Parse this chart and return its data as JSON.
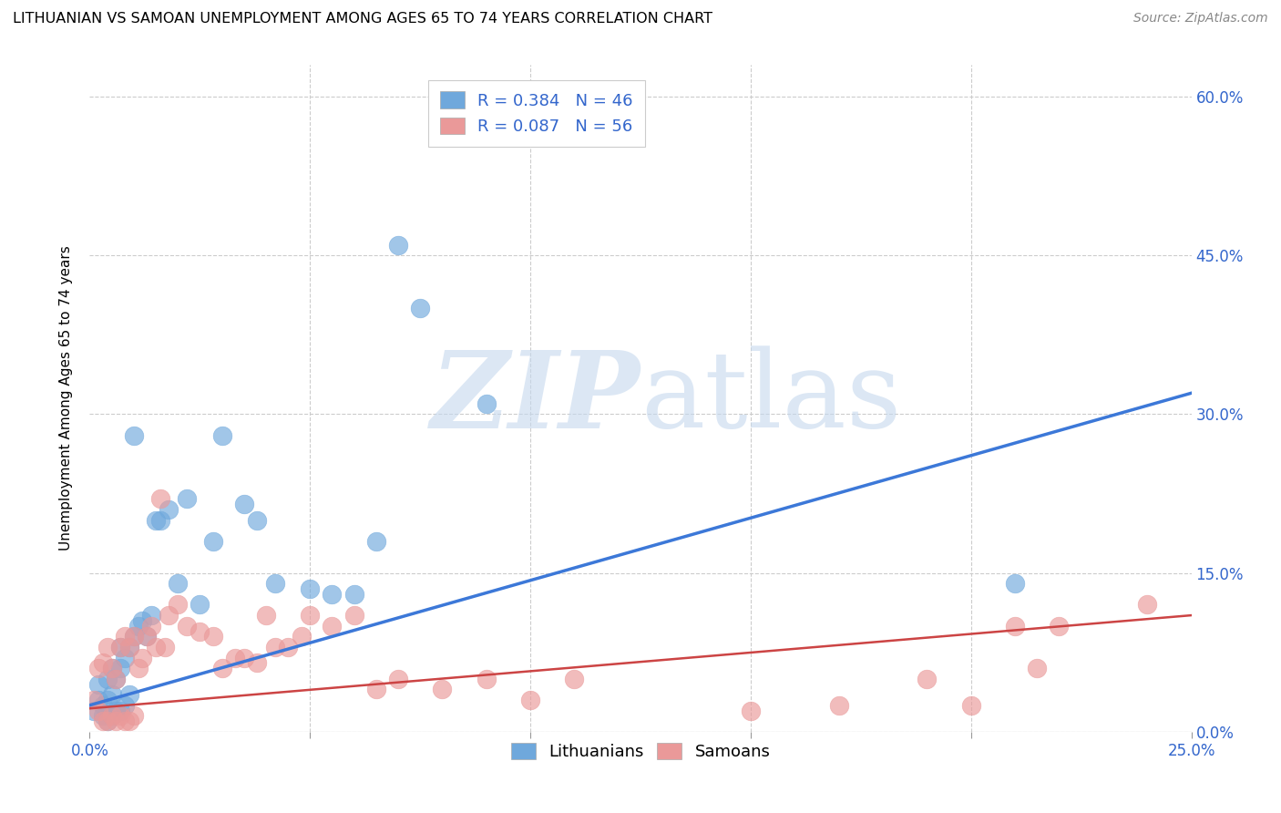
{
  "title": "LITHUANIAN VS SAMOAN UNEMPLOYMENT AMONG AGES 65 TO 74 YEARS CORRELATION CHART",
  "source": "Source: ZipAtlas.com",
  "ylabel": "Unemployment Among Ages 65 to 74 years",
  "xlim": [
    0.0,
    0.25
  ],
  "ylim": [
    0.0,
    0.63
  ],
  "lithuanian_color": "#6fa8dc",
  "samoan_color": "#ea9999",
  "lithuanian_line_color": "#3c78d8",
  "samoan_line_color": "#cc4444",
  "R_lithuanian": 0.384,
  "N_lithuanian": 46,
  "R_samoan": 0.087,
  "N_samoan": 56,
  "background_color": "#ffffff",
  "title_fontsize": 11.5,
  "source_fontsize": 10,
  "legend_fontsize": 13,
  "axis_label_fontsize": 11,
  "tick_fontsize": 12,
  "lit_x": [
    0.001,
    0.002,
    0.002,
    0.003,
    0.003,
    0.004,
    0.004,
    0.004,
    0.005,
    0.005,
    0.005,
    0.006,
    0.006,
    0.007,
    0.007,
    0.007,
    0.008,
    0.008,
    0.009,
    0.009,
    0.01,
    0.01,
    0.011,
    0.012,
    0.013,
    0.014,
    0.015,
    0.016,
    0.018,
    0.02,
    0.022,
    0.025,
    0.028,
    0.03,
    0.035,
    0.038,
    0.042,
    0.05,
    0.055,
    0.06,
    0.065,
    0.07,
    0.075,
    0.09,
    0.12,
    0.21
  ],
  "lit_y": [
    0.02,
    0.03,
    0.045,
    0.015,
    0.025,
    0.01,
    0.03,
    0.05,
    0.015,
    0.035,
    0.06,
    0.02,
    0.05,
    0.02,
    0.06,
    0.08,
    0.025,
    0.07,
    0.035,
    0.08,
    0.09,
    0.28,
    0.1,
    0.105,
    0.09,
    0.11,
    0.2,
    0.2,
    0.21,
    0.14,
    0.22,
    0.12,
    0.18,
    0.28,
    0.215,
    0.2,
    0.14,
    0.135,
    0.13,
    0.13,
    0.18,
    0.46,
    0.4,
    0.31,
    0.57,
    0.14
  ],
  "sam_x": [
    0.001,
    0.002,
    0.002,
    0.003,
    0.003,
    0.004,
    0.004,
    0.005,
    0.005,
    0.006,
    0.006,
    0.007,
    0.007,
    0.008,
    0.008,
    0.009,
    0.009,
    0.01,
    0.01,
    0.011,
    0.012,
    0.013,
    0.014,
    0.015,
    0.016,
    0.017,
    0.018,
    0.02,
    0.022,
    0.025,
    0.028,
    0.03,
    0.033,
    0.035,
    0.038,
    0.04,
    0.042,
    0.045,
    0.048,
    0.05,
    0.055,
    0.06,
    0.065,
    0.07,
    0.08,
    0.09,
    0.1,
    0.11,
    0.15,
    0.17,
    0.19,
    0.2,
    0.21,
    0.215,
    0.22,
    0.24
  ],
  "sam_y": [
    0.03,
    0.02,
    0.06,
    0.01,
    0.065,
    0.01,
    0.08,
    0.015,
    0.06,
    0.01,
    0.05,
    0.015,
    0.08,
    0.01,
    0.09,
    0.01,
    0.08,
    0.015,
    0.09,
    0.06,
    0.07,
    0.09,
    0.1,
    0.08,
    0.22,
    0.08,
    0.11,
    0.12,
    0.1,
    0.095,
    0.09,
    0.06,
    0.07,
    0.07,
    0.065,
    0.11,
    0.08,
    0.08,
    0.09,
    0.11,
    0.1,
    0.11,
    0.04,
    0.05,
    0.04,
    0.05,
    0.03,
    0.05,
    0.02,
    0.025,
    0.05,
    0.025,
    0.1,
    0.06,
    0.1,
    0.12
  ],
  "lit_line_x": [
    0.0,
    0.25
  ],
  "lit_line_y": [
    0.025,
    0.32
  ],
  "sam_line_x": [
    0.0,
    0.25
  ],
  "sam_line_y": [
    0.022,
    0.11
  ]
}
